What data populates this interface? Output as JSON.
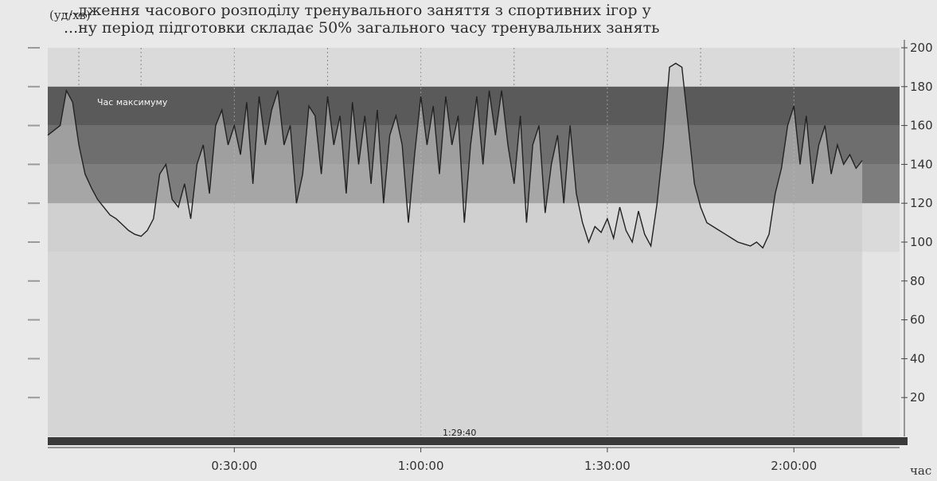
{
  "scan_text": {
    "line1": "...дження часового розподілу тренувального заняття з спортивних ігор у",
    "line2": "...ну період підготовки складає 50% загального часу тренувальних занять"
  },
  "top_left_label": "(уд/хв)",
  "chart_data": {
    "type": "area",
    "title": "",
    "xlabel": "час",
    "ylabel": "(уд/хв)",
    "ylim": [
      0,
      200
    ],
    "xlim_minutes": [
      0,
      137
    ],
    "x_tick_labels": [
      "0:30:00",
      "1:00:00",
      "1:30:00",
      "2:00:00"
    ],
    "x_tick_minutes": [
      30,
      60,
      90,
      120
    ],
    "y_ticks": [
      20,
      40,
      60,
      80,
      100,
      120,
      140,
      160,
      180,
      200
    ],
    "y_tick_labels": [
      "20",
      "40",
      "60",
      "80",
      "100",
      "120",
      "140",
      "160",
      "180",
      "200"
    ],
    "zone_labels": [
      "Час максимуму"
    ],
    "bottom_label": "1:29:40",
    "series": [
      {
        "values_by_minute": [
          [
            0,
            155
          ],
          [
            2,
            160
          ],
          [
            3,
            178
          ],
          [
            4,
            172
          ],
          [
            5,
            150
          ],
          [
            6,
            135
          ],
          [
            7,
            128
          ],
          [
            8,
            122
          ],
          [
            9,
            118
          ],
          [
            10,
            114
          ],
          [
            11,
            112
          ],
          [
            12,
            109
          ],
          [
            13,
            106
          ],
          [
            14,
            104
          ],
          [
            15,
            103
          ],
          [
            16,
            106
          ],
          [
            17,
            112
          ],
          [
            18,
            135
          ],
          [
            19,
            140
          ],
          [
            20,
            122
          ],
          [
            21,
            118
          ],
          [
            22,
            130
          ],
          [
            23,
            112
          ],
          [
            24,
            140
          ],
          [
            25,
            150
          ],
          [
            26,
            125
          ],
          [
            27,
            160
          ],
          [
            28,
            168
          ],
          [
            29,
            150
          ],
          [
            30,
            160
          ],
          [
            31,
            145
          ],
          [
            32,
            172
          ],
          [
            33,
            130
          ],
          [
            34,
            175
          ],
          [
            35,
            150
          ],
          [
            36,
            168
          ],
          [
            37,
            178
          ],
          [
            38,
            150
          ],
          [
            39,
            160
          ],
          [
            40,
            120
          ],
          [
            41,
            135
          ],
          [
            42,
            170
          ],
          [
            43,
            165
          ],
          [
            44,
            135
          ],
          [
            45,
            175
          ],
          [
            46,
            150
          ],
          [
            47,
            165
          ],
          [
            48,
            125
          ],
          [
            49,
            172
          ],
          [
            50,
            140
          ],
          [
            51,
            165
          ],
          [
            52,
            130
          ],
          [
            53,
            168
          ],
          [
            54,
            120
          ],
          [
            55,
            155
          ],
          [
            56,
            165
          ],
          [
            57,
            150
          ],
          [
            58,
            110
          ],
          [
            59,
            145
          ],
          [
            60,
            175
          ],
          [
            61,
            150
          ],
          [
            62,
            170
          ],
          [
            63,
            135
          ],
          [
            64,
            175
          ],
          [
            65,
            150
          ],
          [
            66,
            165
          ],
          [
            67,
            110
          ],
          [
            68,
            150
          ],
          [
            69,
            175
          ],
          [
            70,
            140
          ],
          [
            71,
            178
          ],
          [
            72,
            155
          ],
          [
            73,
            178
          ],
          [
            74,
            150
          ],
          [
            75,
            130
          ],
          [
            76,
            165
          ],
          [
            77,
            110
          ],
          [
            78,
            150
          ],
          [
            79,
            160
          ],
          [
            80,
            115
          ],
          [
            81,
            140
          ],
          [
            82,
            155
          ],
          [
            83,
            120
          ],
          [
            84,
            160
          ],
          [
            85,
            125
          ],
          [
            86,
            110
          ],
          [
            87,
            100
          ],
          [
            88,
            108
          ],
          [
            89,
            105
          ],
          [
            90,
            112
          ],
          [
            91,
            102
          ],
          [
            92,
            118
          ],
          [
            93,
            106
          ],
          [
            94,
            100
          ],
          [
            95,
            116
          ],
          [
            96,
            104
          ],
          [
            97,
            98
          ],
          [
            98,
            120
          ],
          [
            99,
            150
          ],
          [
            100,
            190
          ],
          [
            101,
            192
          ],
          [
            102,
            190
          ],
          [
            103,
            160
          ],
          [
            104,
            130
          ],
          [
            105,
            118
          ],
          [
            106,
            110
          ],
          [
            107,
            108
          ],
          [
            108,
            106
          ],
          [
            109,
            104
          ],
          [
            110,
            102
          ],
          [
            111,
            100
          ],
          [
            112,
            99
          ],
          [
            113,
            98
          ],
          [
            114,
            100
          ],
          [
            115,
            97
          ],
          [
            116,
            104
          ],
          [
            117,
            125
          ],
          [
            118,
            138
          ],
          [
            119,
            160
          ],
          [
            120,
            170
          ],
          [
            121,
            140
          ],
          [
            122,
            165
          ],
          [
            123,
            130
          ],
          [
            124,
            150
          ],
          [
            125,
            160
          ],
          [
            126,
            135
          ],
          [
            127,
            150
          ],
          [
            128,
            140
          ],
          [
            129,
            145
          ],
          [
            130,
            138
          ],
          [
            131,
            142
          ]
        ]
      }
    ],
    "colors": {
      "band_top": "#5a5a5a",
      "band_mid": "#6e6e6e",
      "band_lower": "#7d7d7d",
      "fill_light": "#c9c9c9",
      "line": "#222222",
      "plot_bg": "#dadada",
      "bottom_bar": "#3a3a3a"
    }
  }
}
